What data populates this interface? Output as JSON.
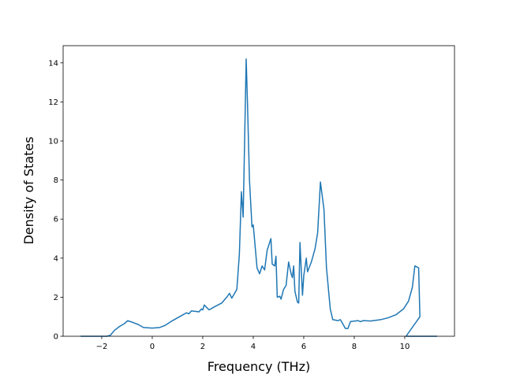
{
  "chart_data": {
    "type": "line",
    "xlabel": "Frequency (THz)",
    "ylabel": "Density of States",
    "x": [
      -2.84,
      -1.8,
      -1.66,
      -1.5,
      -1.3,
      -1.1,
      -0.97,
      -0.75,
      -0.55,
      -0.35,
      0,
      0.3,
      0.5,
      0.8,
      1.15,
      1.35,
      1.45,
      1.55,
      1.85,
      1.95,
      2.0,
      2.06,
      2.25,
      2.45,
      2.75,
      2.95,
      3.06,
      3.15,
      3.35,
      3.45,
      3.53,
      3.6,
      3.72,
      3.77,
      3.85,
      3.95,
      4.0,
      4.15,
      4.25,
      4.35,
      4.45,
      4.55,
      4.7,
      4.75,
      4.85,
      4.9,
      4.95,
      5.05,
      5.1,
      5.2,
      5.3,
      5.4,
      5.5,
      5.55,
      5.6,
      5.65,
      5.75,
      5.8,
      5.85,
      5.95,
      6.0,
      6.1,
      6.15,
      6.3,
      6.45,
      6.55,
      6.66,
      6.8,
      6.9,
      7.05,
      7.15,
      7.35,
      7.45,
      7.65,
      7.75,
      7.85,
      8.15,
      8.25,
      8.35,
      8.65,
      9.05,
      9.35,
      9.65,
      9.95,
      10.15,
      10.3,
      10.4,
      10.55,
      10.6,
      10.05,
      11.28
    ],
    "values": [
      0,
      0,
      0.05,
      0.3,
      0.5,
      0.65,
      0.8,
      0.7,
      0.6,
      0.45,
      0.42,
      0.45,
      0.55,
      0.8,
      1.05,
      1.2,
      1.15,
      1.3,
      1.25,
      1.4,
      1.35,
      1.6,
      1.35,
      1.5,
      1.7,
      2.0,
      2.2,
      1.95,
      2.4,
      4.2,
      7.4,
      6.1,
      14.2,
      12,
      8,
      5.6,
      5.7,
      3.5,
      3.2,
      3.6,
      3.4,
      4.4,
      5.0,
      3.7,
      3.6,
      4.1,
      2.0,
      2.05,
      1.9,
      2.4,
      2.6,
      3.8,
      3.2,
      3.0,
      3.6,
      2.3,
      1.75,
      1.7,
      4.8,
      2.1,
      3.1,
      4.0,
      3.3,
      3.8,
      4.5,
      5.3,
      7.9,
      6.5,
      3.5,
      1.4,
      0.85,
      0.8,
      0.85,
      0.4,
      0.4,
      0.75,
      0.8,
      0.75,
      0.8,
      0.78,
      0.85,
      0.95,
      1.1,
      1.4,
      1.8,
      2.5,
      3.6,
      3.5,
      1.0,
      0,
      0
    ],
    "color": "#1f77b4",
    "xlim": [
      -3.53,
      11.97
    ],
    "ylim": [
      0,
      14.88
    ],
    "xticks": [
      {
        "value": -2,
        "label": "−2"
      },
      0,
      2,
      4,
      6,
      8,
      10
    ],
    "yticks": [
      0,
      2,
      4,
      6,
      8,
      10,
      12,
      14
    ]
  }
}
